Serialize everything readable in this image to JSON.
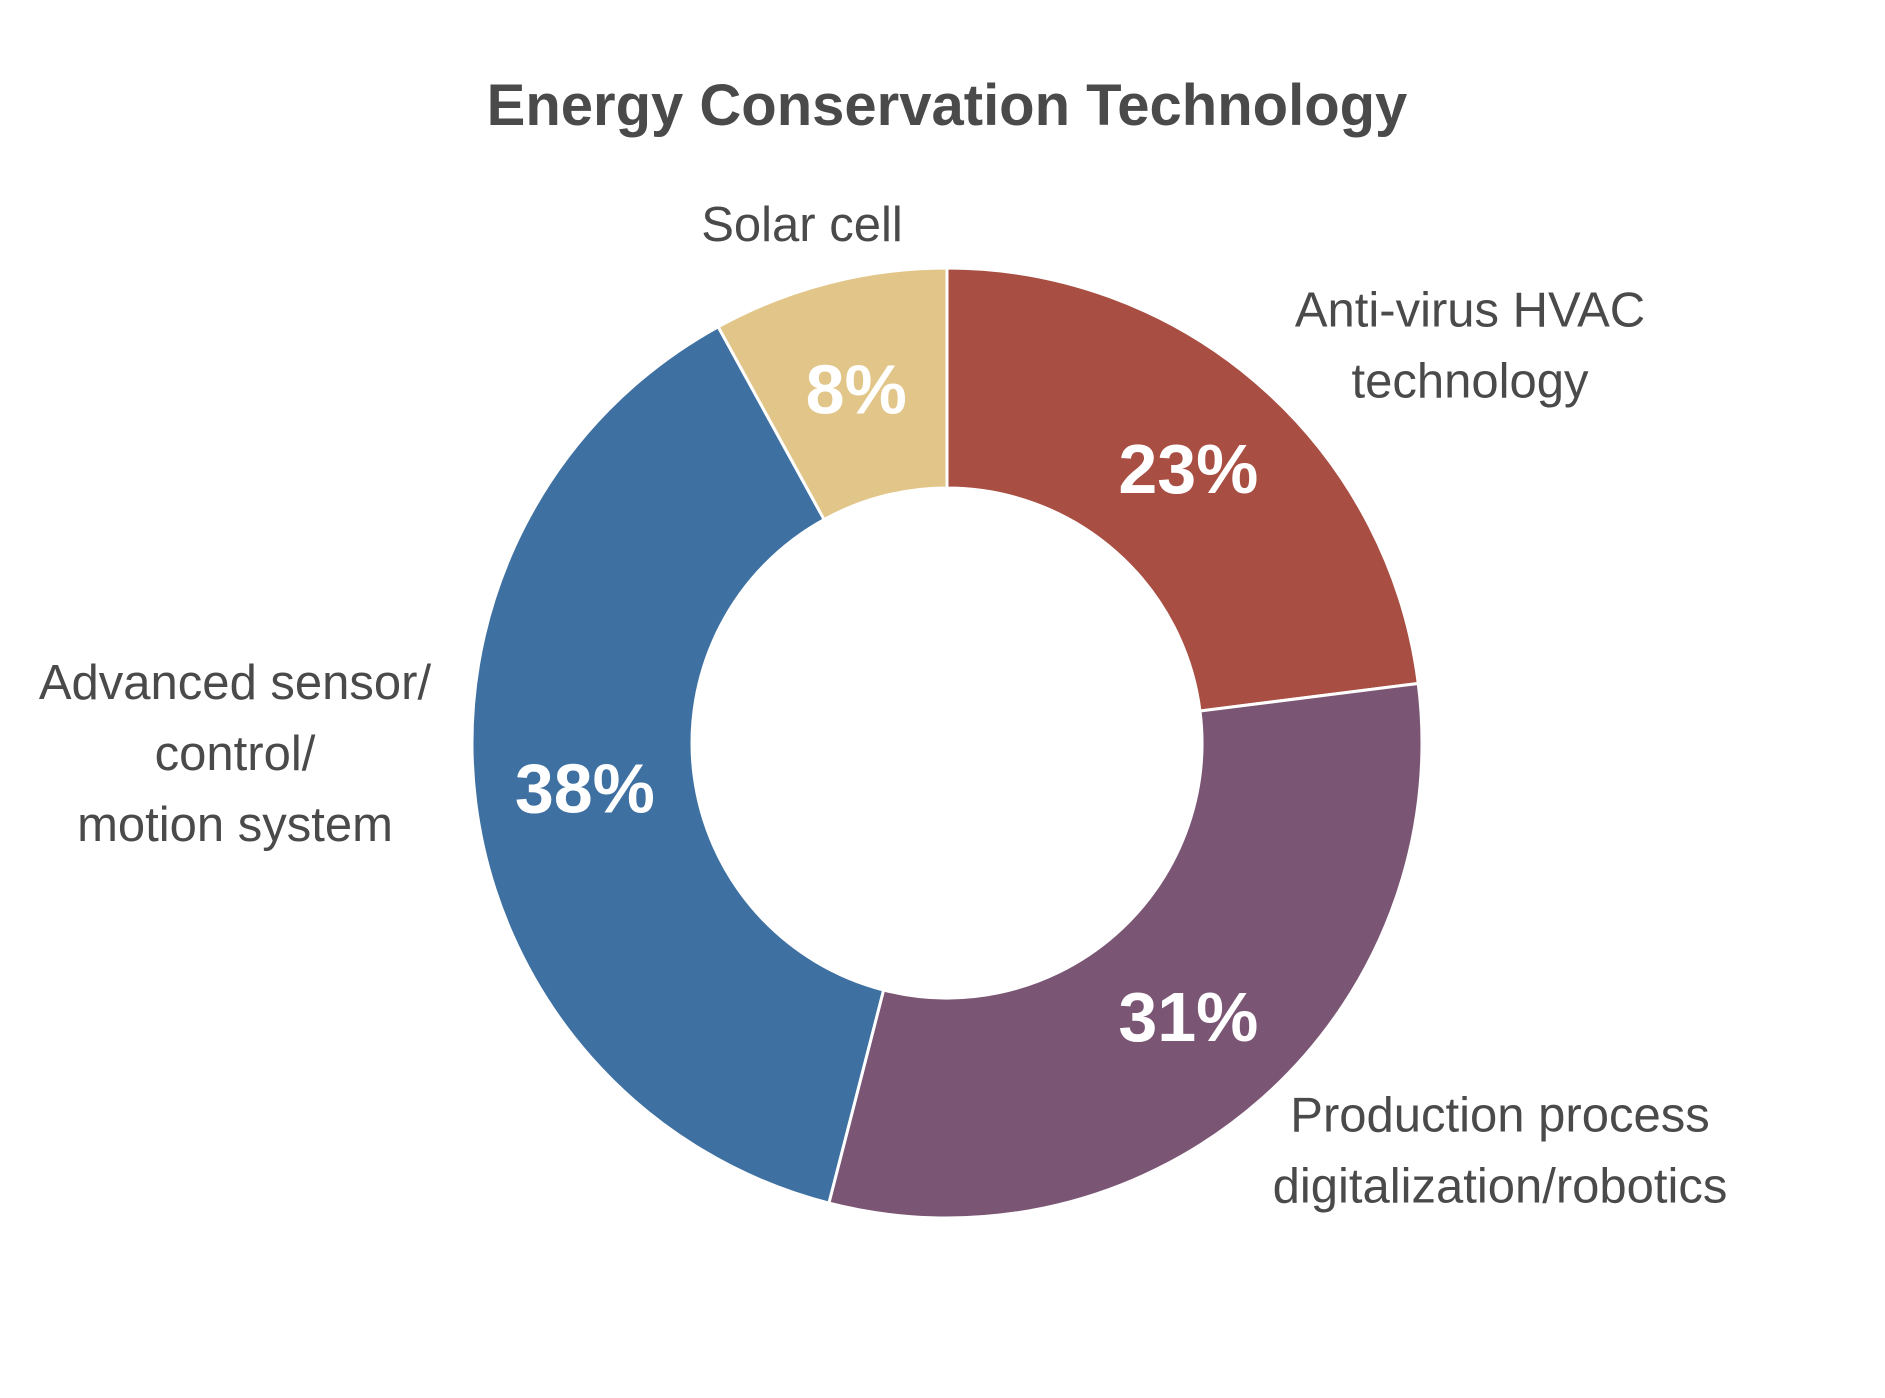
{
  "chart_data": {
    "type": "pie",
    "variant": "donut",
    "title": "Energy Conservation Technology",
    "unit": "%",
    "categories": [
      "Anti-virus HVAC technology",
      "Production process digitalization/robotics",
      "Advanced sensor/control/motion system",
      "Solar cell"
    ],
    "values": [
      23,
      31,
      38,
      8
    ],
    "value_labels": [
      "23%",
      "31%",
      "38%",
      "8%"
    ],
    "label_lines": [
      [
        "Anti-virus HVAC",
        "technology"
      ],
      [
        "Production process",
        "digitalization/robotics"
      ],
      [
        "Advanced sensor/",
        "control/",
        "motion system"
      ],
      [
        "Solar cell"
      ]
    ],
    "colors": [
      "#a84e42",
      "#7a5674",
      "#3e70a1",
      "#e2c689"
    ],
    "start": "12 o'clock",
    "direction": "clockwise",
    "legend": "none",
    "label_placement": "outside, next to each slice"
  },
  "colors": {
    "text": "#4a4a4a",
    "percent_text": "#ffffff",
    "separator": "#ffffff",
    "background": "#ffffff"
  }
}
